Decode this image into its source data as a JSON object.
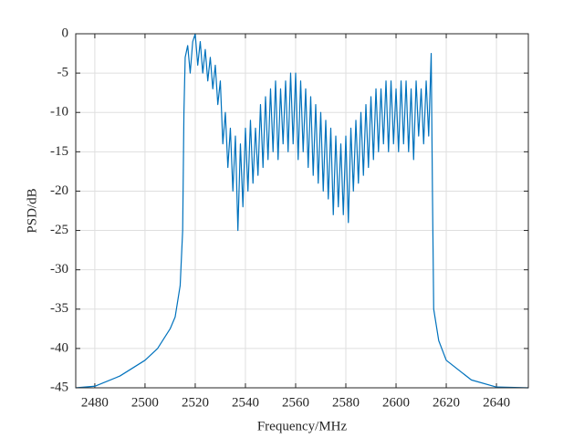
{
  "chart_data": {
    "type": "line",
    "xlabel": "Frequency/MHz",
    "ylabel": "PSD/dB",
    "color": "#0072bd",
    "grid": true,
    "xlim": [
      2472.4,
      2652.7
    ],
    "ylim": [
      -45,
      0
    ],
    "xticks": [
      2480,
      2500,
      2520,
      2540,
      2560,
      2580,
      2600,
      2620,
      2640
    ],
    "yticks": [
      -45,
      -40,
      -35,
      -30,
      -25,
      -20,
      -15,
      -10,
      -5,
      0
    ],
    "x": [
      2472.4,
      2480,
      2490,
      2500,
      2505,
      2510,
      2512,
      2514,
      2515,
      2515.5,
      2516,
      2517,
      2518,
      2519,
      2520,
      2521,
      2522,
      2523,
      2524,
      2525,
      2526,
      2527,
      2528,
      2529,
      2530,
      2531,
      2532,
      2533,
      2534,
      2535,
      2536,
      2537,
      2538,
      2539,
      2540,
      2541,
      2542,
      2543,
      2544,
      2545,
      2546,
      2547,
      2548,
      2549,
      2550,
      2551,
      2552,
      2553,
      2554,
      2555,
      2556,
      2557,
      2558,
      2559,
      2560,
      2561,
      2562,
      2563,
      2564,
      2565,
      2566,
      2567,
      2568,
      2569,
      2570,
      2571,
      2572,
      2573,
      2574,
      2575,
      2576,
      2577,
      2578,
      2579,
      2580,
      2581,
      2582,
      2583,
      2584,
      2585,
      2586,
      2587,
      2588,
      2589,
      2590,
      2591,
      2592,
      2593,
      2594,
      2595,
      2596,
      2597,
      2598,
      2599,
      2600,
      2601,
      2602,
      2603,
      2604,
      2605,
      2606,
      2607,
      2608,
      2609,
      2610,
      2611,
      2612,
      2613,
      2614,
      2614.5,
      2615,
      2617,
      2620,
      2630,
      2640,
      2652.7
    ],
    "values": [
      -45,
      -44.8,
      -43.5,
      -41.5,
      -40,
      -37.5,
      -36,
      -32,
      -25,
      -10,
      -3,
      -1.5,
      -5,
      -1,
      0,
      -4,
      -1,
      -5,
      -2,
      -6,
      -3,
      -7,
      -4,
      -9,
      -6,
      -14,
      -10,
      -17,
      -12,
      -20,
      -13,
      -25,
      -14,
      -22,
      -12,
      -20,
      -11,
      -19,
      -12,
      -18,
      -9,
      -17,
      -8,
      -16,
      -7,
      -15,
      -6,
      -16,
      -7,
      -14,
      -6,
      -15,
      -5,
      -14,
      -5,
      -16,
      -6,
      -15,
      -7,
      -17,
      -8,
      -18,
      -9,
      -19,
      -10,
      -20,
      -11,
      -21,
      -12,
      -23,
      -13,
      -22,
      -14,
      -23,
      -13,
      -24,
      -12,
      -20,
      -11,
      -19,
      -10,
      -18,
      -9,
      -17,
      -8,
      -16,
      -7,
      -15,
      -7,
      -14,
      -6,
      -15,
      -6,
      -14,
      -7,
      -15,
      -6,
      -14,
      -6,
      -15,
      -7,
      -16,
      -6,
      -13,
      -7,
      -14,
      -6,
      -13,
      -2.5,
      -20,
      -35,
      -39,
      -41.5,
      -44,
      -44.9,
      -45
    ]
  }
}
